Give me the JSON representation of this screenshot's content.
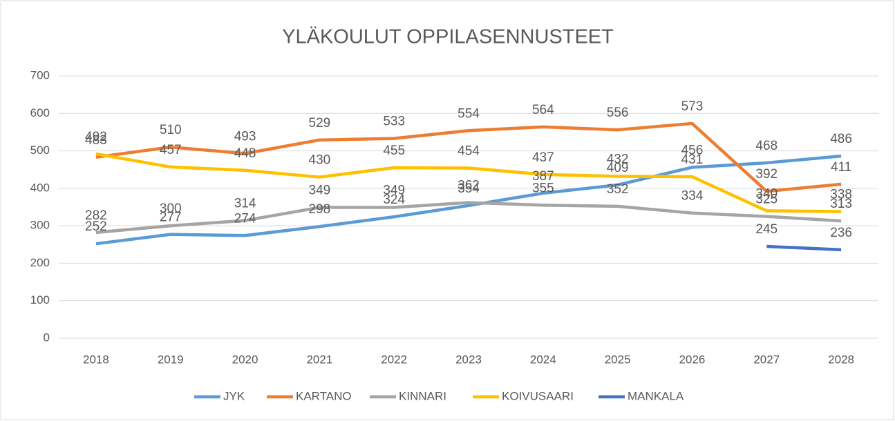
{
  "chart_data": {
    "type": "line",
    "title": "YLÄKOULUT OPPILASENNUSTEET",
    "categories": [
      "2018",
      "2019",
      "2020",
      "2021",
      "2022",
      "2023",
      "2024",
      "2025",
      "2026",
      "2027",
      "2028"
    ],
    "series": [
      {
        "name": "JYK",
        "color": "#5b9bd5",
        "values": [
          252,
          277,
          274,
          298,
          324,
          354,
          387,
          409,
          456,
          468,
          486
        ]
      },
      {
        "name": "KARTANO",
        "color": "#ed7d31",
        "values": [
          483,
          510,
          493,
          529,
          533,
          554,
          564,
          556,
          573,
          392,
          411
        ]
      },
      {
        "name": "KINNARI",
        "color": "#a5a5a5",
        "values": [
          282,
          300,
          314,
          349,
          349,
          362,
          355,
          352,
          334,
          325,
          313
        ]
      },
      {
        "name": "KOIVUSAARI",
        "color": "#ffc000",
        "values": [
          492,
          457,
          448,
          430,
          455,
          454,
          437,
          432,
          431,
          340,
          338
        ]
      },
      {
        "name": "MANKALA",
        "color": "#4472c4",
        "values": [
          null,
          null,
          null,
          null,
          null,
          null,
          null,
          null,
          null,
          245,
          236
        ]
      }
    ],
    "ylim": [
      0,
      700
    ],
    "yticks": [
      0,
      100,
      200,
      300,
      400,
      500,
      600,
      700
    ],
    "grid": true,
    "legend": "bottom"
  }
}
